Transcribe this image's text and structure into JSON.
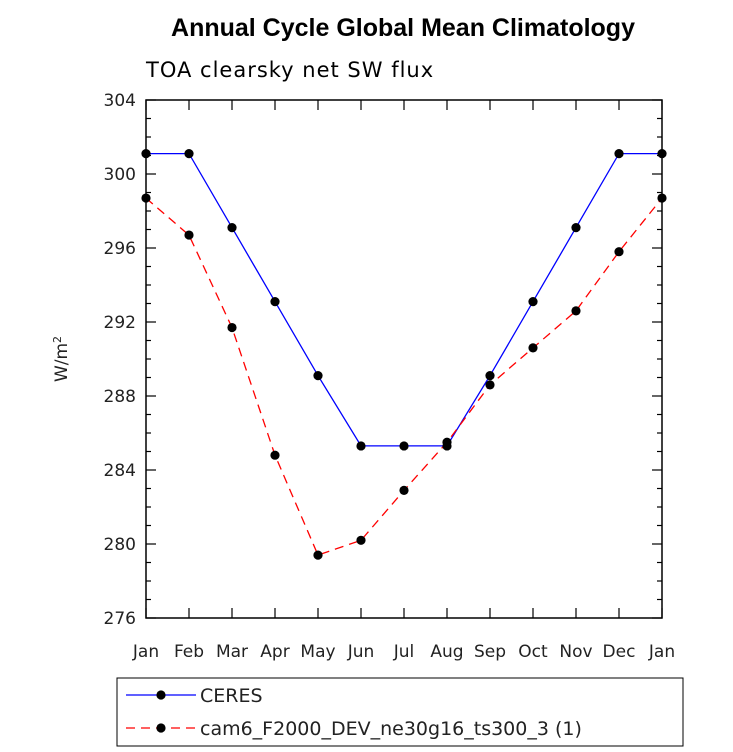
{
  "chart_data": {
    "type": "line",
    "title": "Annual Cycle Global Mean Climatology",
    "subtitle": "TOA clearsky net SW flux",
    "ylabel_main": "W/m",
    "ylabel_sup": "2",
    "xlabel": "",
    "categories": [
      "Jan",
      "Feb",
      "Mar",
      "Apr",
      "May",
      "Jun",
      "Jul",
      "Aug",
      "Sep",
      "Oct",
      "Nov",
      "Dec",
      "Jan"
    ],
    "ylim": [
      276,
      304
    ],
    "yticks": [
      276,
      280,
      284,
      288,
      292,
      296,
      300,
      304
    ],
    "series": [
      {
        "name": "CERES",
        "color": "#0000ff",
        "dash": "solid",
        "values": [
          301.1,
          301.1,
          297.1,
          293.1,
          289.1,
          285.3,
          285.3,
          285.3,
          289.1,
          293.1,
          297.1,
          301.1,
          301.1
        ]
      },
      {
        "name": "cam6_F2000_DEV_ne30g16_ts300_3 (1)",
        "color": "#ff0000",
        "dash": "dashed",
        "values": [
          298.7,
          296.7,
          291.7,
          284.8,
          279.4,
          280.2,
          282.9,
          285.5,
          288.6,
          290.6,
          292.6,
          295.8,
          298.7
        ]
      }
    ]
  }
}
